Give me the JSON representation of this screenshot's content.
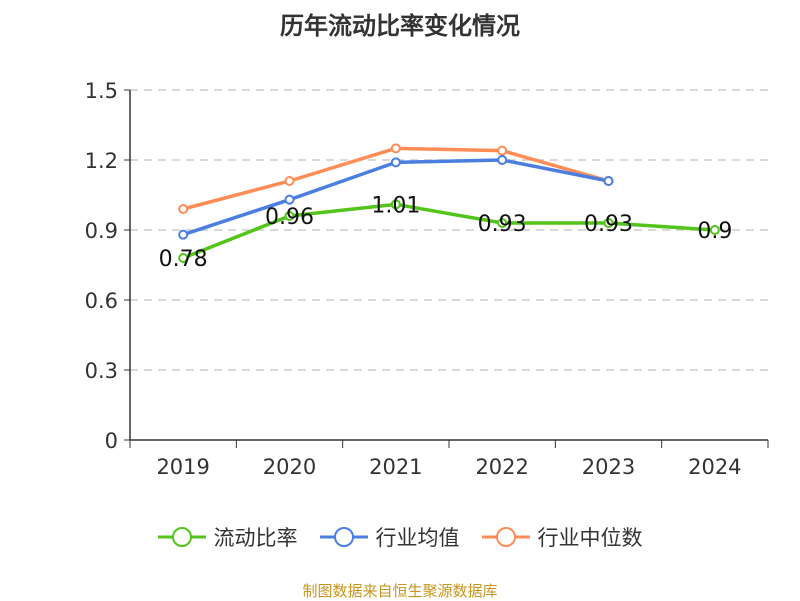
{
  "chart_data": {
    "type": "line",
    "title": "历年流动比率变化情况",
    "categories": [
      "2019",
      "2020",
      "2021",
      "2022",
      "2023",
      "2024"
    ],
    "ylim": [
      0,
      1.5
    ],
    "yticks": [
      "0",
      "0.3",
      "0.6",
      "0.9",
      "1.2",
      "1.5"
    ],
    "grid": true,
    "legend_position": "bottom",
    "series": [
      {
        "name": "流动比率",
        "color": "#52c41a",
        "values": [
          0.78,
          0.96,
          1.01,
          0.93,
          0.93,
          0.9
        ],
        "labels": [
          "0.78",
          "0.96",
          "1.01",
          "0.93",
          "0.93",
          "0.9"
        ]
      },
      {
        "name": "行业均值",
        "color": "#4a7fe0",
        "values": [
          0.88,
          1.03,
          1.19,
          1.2,
          1.11,
          null
        ]
      },
      {
        "name": "行业中位数",
        "color": "#ff8c55",
        "values": [
          0.99,
          1.11,
          1.25,
          1.24,
          1.11,
          null
        ]
      }
    ]
  },
  "source": "制图数据来自恒生聚源数据库"
}
